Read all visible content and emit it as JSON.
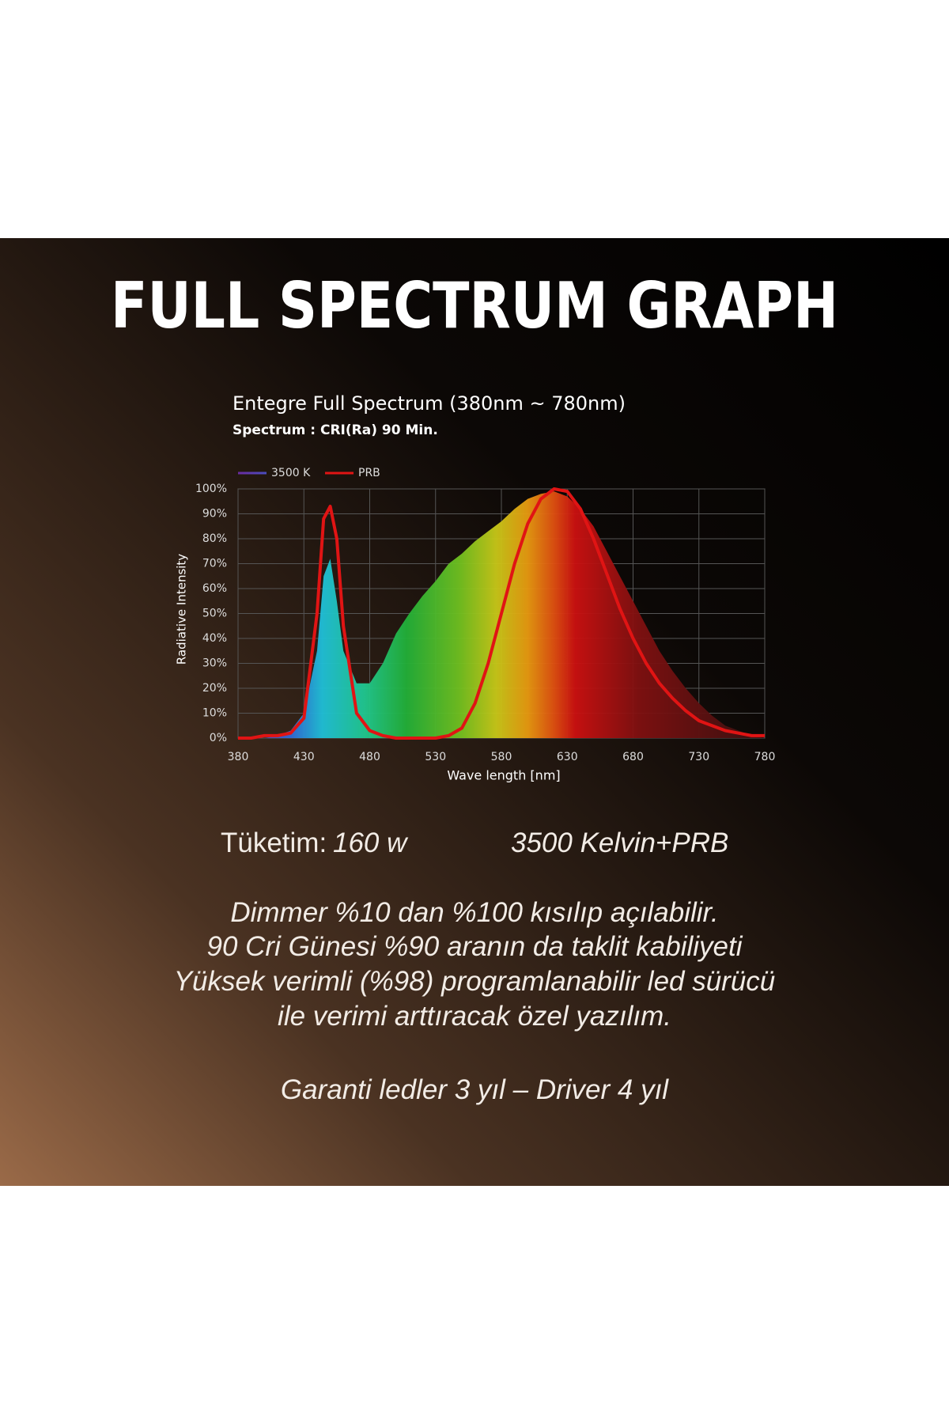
{
  "chart_data": {
    "type": "area-line",
    "title": "FULL SPECTRUM GRAPH",
    "subtitle": "Entegre Full Spectrum (380nm ~ 780nm)",
    "note": "Spectrum : CRI(Ra) 90 Min.",
    "xlabel": "Wave length [nm]",
    "ylabel": "Radiative Intensity",
    "x": [
      380,
      390,
      400,
      410,
      420,
      430,
      440,
      445,
      450,
      455,
      460,
      470,
      480,
      490,
      500,
      510,
      520,
      530,
      540,
      550,
      560,
      570,
      580,
      590,
      600,
      610,
      620,
      630,
      640,
      650,
      660,
      670,
      680,
      690,
      700,
      710,
      720,
      730,
      740,
      750,
      760,
      770,
      780
    ],
    "series": [
      {
        "name": "3500 K",
        "values": [
          0,
          0,
          0,
          1,
          3,
          10,
          35,
          65,
          72,
          55,
          35,
          22,
          22,
          30,
          42,
          50,
          57,
          63,
          70,
          74,
          79,
          83,
          87,
          92,
          96,
          98,
          99,
          97,
          92,
          85,
          75,
          65,
          55,
          45,
          35,
          27,
          20,
          14,
          9,
          5,
          3,
          1,
          0
        ]
      },
      {
        "name": "PRB",
        "color": "#e01414",
        "values": [
          0,
          0,
          1,
          1,
          2,
          8,
          50,
          88,
          93,
          80,
          45,
          10,
          3,
          1,
          0,
          0,
          0,
          0,
          1,
          4,
          14,
          30,
          50,
          70,
          86,
          96,
          100,
          99,
          92,
          80,
          66,
          52,
          40,
          30,
          22,
          16,
          11,
          7,
          5,
          3,
          2,
          1,
          1
        ]
      }
    ],
    "xlim": [
      380,
      780
    ],
    "xticks": [
      380,
      430,
      480,
      530,
      580,
      630,
      680,
      730,
      780
    ],
    "ylim": [
      0,
      100
    ],
    "yticks": [
      {
        "value": 0,
        "label": "0%"
      },
      {
        "value": 10,
        "label": "10%"
      },
      {
        "value": 20,
        "label": "20%"
      },
      {
        "value": 30,
        "label": "30%"
      },
      {
        "value": 40,
        "label": "40%"
      },
      {
        "value": 50,
        "label": "50%"
      },
      {
        "value": 60,
        "label": "60%"
      },
      {
        "value": 70,
        "label": "70%"
      },
      {
        "value": 80,
        "label": "80%"
      },
      {
        "value": 90,
        "label": "90%"
      },
      {
        "value": 100,
        "label": "100%"
      }
    ],
    "grid": true
  },
  "info": {
    "consumption_label": "Tüketim:",
    "consumption_value": "160 w",
    "light": "3500 Kelvin+PRB",
    "lines": [
      "Dimmer %10 dan %100 kısılıp açılabilir.",
      "90 Cri Günesi %90 aranın da taklit kabiliyeti",
      "Yüksek verimli (%98) programlanabilir led sürücü",
      "ile verimi arttıracak özel yazılım."
    ],
    "warranty": "Garanti ledler 3 yıl – Driver 4 yıl"
  }
}
